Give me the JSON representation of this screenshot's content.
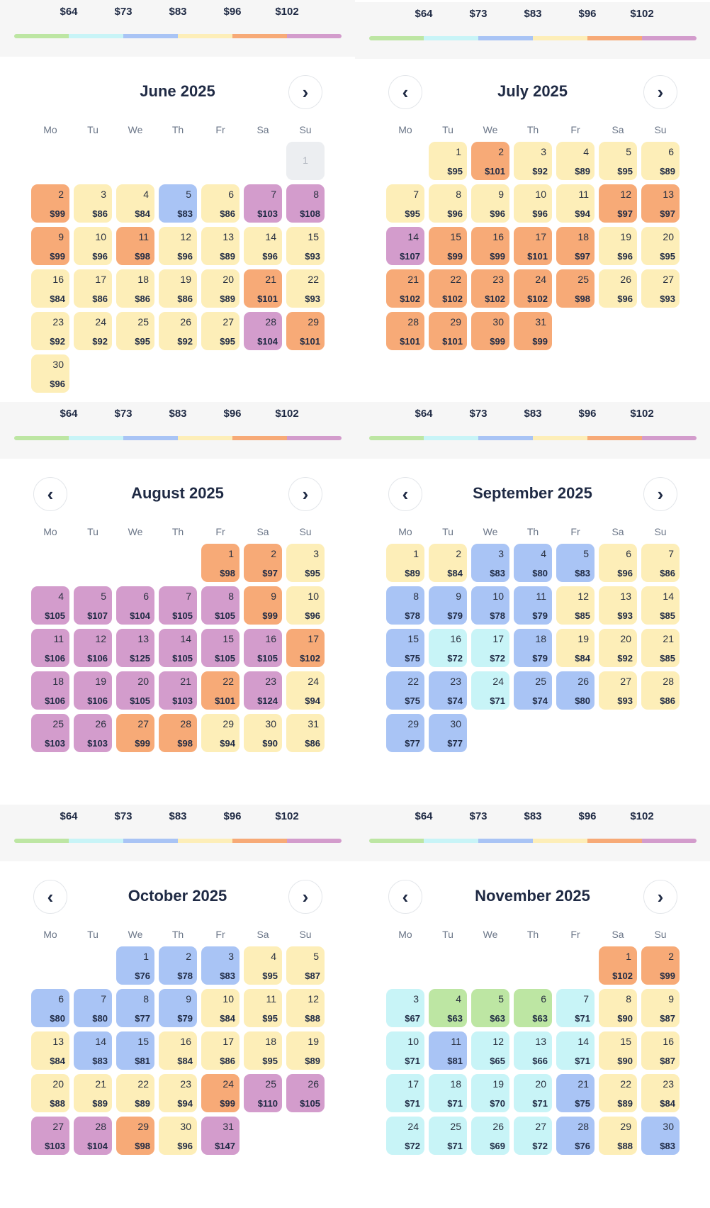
{
  "legend": {
    "prices": [
      "$64",
      "$73",
      "$83",
      "$96",
      "$102"
    ],
    "colors": [
      "#bde6a3",
      "#c8f4f7",
      "#a9c4f5",
      "#fdeeb8",
      "#f7aa77",
      "#d39ccc"
    ]
  },
  "icons": {
    "prev": "chevron-left-icon",
    "next": "chevron-right-icon"
  },
  "nav_glyphs": {
    "prev": "‹",
    "next": "›"
  },
  "weekdays": [
    "Mo",
    "Tu",
    "We",
    "Th",
    "Fr",
    "Sa",
    "Su"
  ],
  "tier_colors": {
    "green": "#bde6a3",
    "cyan": "#c8f4f7",
    "blue": "#a9c4f5",
    "yellow": "#fdeeb8",
    "orange": "#f7aa77",
    "purple": "#d39ccc",
    "disabled": "#eceef1"
  },
  "months": [
    {
      "title": "June 2025",
      "start_col": 6,
      "has_prev": false,
      "has_next": true,
      "days": [
        {
          "d": "1",
          "p": "",
          "t": "disabled"
        },
        {
          "d": "2",
          "p": "$99",
          "t": "orange"
        },
        {
          "d": "3",
          "p": "$86",
          "t": "yellow"
        },
        {
          "d": "4",
          "p": "$84",
          "t": "yellow"
        },
        {
          "d": "5",
          "p": "$83",
          "t": "blue"
        },
        {
          "d": "6",
          "p": "$86",
          "t": "yellow"
        },
        {
          "d": "7",
          "p": "$103",
          "t": "purple"
        },
        {
          "d": "8",
          "p": "$108",
          "t": "purple"
        },
        {
          "d": "9",
          "p": "$99",
          "t": "orange"
        },
        {
          "d": "10",
          "p": "$96",
          "t": "yellow"
        },
        {
          "d": "11",
          "p": "$98",
          "t": "orange"
        },
        {
          "d": "12",
          "p": "$96",
          "t": "yellow"
        },
        {
          "d": "13",
          "p": "$89",
          "t": "yellow"
        },
        {
          "d": "14",
          "p": "$96",
          "t": "yellow"
        },
        {
          "d": "15",
          "p": "$93",
          "t": "yellow"
        },
        {
          "d": "16",
          "p": "$84",
          "t": "yellow"
        },
        {
          "d": "17",
          "p": "$86",
          "t": "yellow"
        },
        {
          "d": "18",
          "p": "$86",
          "t": "yellow"
        },
        {
          "d": "19",
          "p": "$86",
          "t": "yellow"
        },
        {
          "d": "20",
          "p": "$89",
          "t": "yellow"
        },
        {
          "d": "21",
          "p": "$101",
          "t": "orange"
        },
        {
          "d": "22",
          "p": "$93",
          "t": "yellow"
        },
        {
          "d": "23",
          "p": "$92",
          "t": "yellow"
        },
        {
          "d": "24",
          "p": "$92",
          "t": "yellow"
        },
        {
          "d": "25",
          "p": "$95",
          "t": "yellow"
        },
        {
          "d": "26",
          "p": "$92",
          "t": "yellow"
        },
        {
          "d": "27",
          "p": "$95",
          "t": "yellow"
        },
        {
          "d": "28",
          "p": "$104",
          "t": "purple"
        },
        {
          "d": "29",
          "p": "$101",
          "t": "orange"
        },
        {
          "d": "30",
          "p": "$96",
          "t": "yellow"
        }
      ]
    },
    {
      "title": "July 2025",
      "start_col": 1,
      "has_prev": true,
      "has_next": true,
      "days": [
        {
          "d": "1",
          "p": "$95",
          "t": "yellow"
        },
        {
          "d": "2",
          "p": "$101",
          "t": "orange"
        },
        {
          "d": "3",
          "p": "$92",
          "t": "yellow"
        },
        {
          "d": "4",
          "p": "$89",
          "t": "yellow"
        },
        {
          "d": "5",
          "p": "$95",
          "t": "yellow"
        },
        {
          "d": "6",
          "p": "$89",
          "t": "yellow"
        },
        {
          "d": "7",
          "p": "$95",
          "t": "yellow"
        },
        {
          "d": "8",
          "p": "$96",
          "t": "yellow"
        },
        {
          "d": "9",
          "p": "$96",
          "t": "yellow"
        },
        {
          "d": "10",
          "p": "$96",
          "t": "yellow"
        },
        {
          "d": "11",
          "p": "$94",
          "t": "yellow"
        },
        {
          "d": "12",
          "p": "$97",
          "t": "orange"
        },
        {
          "d": "13",
          "p": "$97",
          "t": "orange"
        },
        {
          "d": "14",
          "p": "$107",
          "t": "purple"
        },
        {
          "d": "15",
          "p": "$99",
          "t": "orange"
        },
        {
          "d": "16",
          "p": "$99",
          "t": "orange"
        },
        {
          "d": "17",
          "p": "$101",
          "t": "orange"
        },
        {
          "d": "18",
          "p": "$97",
          "t": "orange"
        },
        {
          "d": "19",
          "p": "$96",
          "t": "yellow"
        },
        {
          "d": "20",
          "p": "$95",
          "t": "yellow"
        },
        {
          "d": "21",
          "p": "$102",
          "t": "orange"
        },
        {
          "d": "22",
          "p": "$102",
          "t": "orange"
        },
        {
          "d": "23",
          "p": "$102",
          "t": "orange"
        },
        {
          "d": "24",
          "p": "$102",
          "t": "orange"
        },
        {
          "d": "25",
          "p": "$98",
          "t": "orange"
        },
        {
          "d": "26",
          "p": "$96",
          "t": "yellow"
        },
        {
          "d": "27",
          "p": "$93",
          "t": "yellow"
        },
        {
          "d": "28",
          "p": "$101",
          "t": "orange"
        },
        {
          "d": "29",
          "p": "$101",
          "t": "orange"
        },
        {
          "d": "30",
          "p": "$99",
          "t": "orange"
        },
        {
          "d": "31",
          "p": "$99",
          "t": "orange"
        }
      ]
    },
    {
      "title": "August 2025",
      "start_col": 4,
      "has_prev": true,
      "has_next": true,
      "days": [
        {
          "d": "1",
          "p": "$98",
          "t": "orange"
        },
        {
          "d": "2",
          "p": "$97",
          "t": "orange"
        },
        {
          "d": "3",
          "p": "$95",
          "t": "yellow"
        },
        {
          "d": "4",
          "p": "$105",
          "t": "purple"
        },
        {
          "d": "5",
          "p": "$107",
          "t": "purple"
        },
        {
          "d": "6",
          "p": "$104",
          "t": "purple"
        },
        {
          "d": "7",
          "p": "$105",
          "t": "purple"
        },
        {
          "d": "8",
          "p": "$105",
          "t": "purple"
        },
        {
          "d": "9",
          "p": "$99",
          "t": "orange"
        },
        {
          "d": "10",
          "p": "$96",
          "t": "yellow"
        },
        {
          "d": "11",
          "p": "$106",
          "t": "purple"
        },
        {
          "d": "12",
          "p": "$106",
          "t": "purple"
        },
        {
          "d": "13",
          "p": "$125",
          "t": "purple"
        },
        {
          "d": "14",
          "p": "$105",
          "t": "purple"
        },
        {
          "d": "15",
          "p": "$105",
          "t": "purple"
        },
        {
          "d": "16",
          "p": "$105",
          "t": "purple"
        },
        {
          "d": "17",
          "p": "$102",
          "t": "orange"
        },
        {
          "d": "18",
          "p": "$106",
          "t": "purple"
        },
        {
          "d": "19",
          "p": "$106",
          "t": "purple"
        },
        {
          "d": "20",
          "p": "$105",
          "t": "purple"
        },
        {
          "d": "21",
          "p": "$103",
          "t": "purple"
        },
        {
          "d": "22",
          "p": "$101",
          "t": "orange"
        },
        {
          "d": "23",
          "p": "$124",
          "t": "purple"
        },
        {
          "d": "24",
          "p": "$94",
          "t": "yellow"
        },
        {
          "d": "25",
          "p": "$103",
          "t": "purple"
        },
        {
          "d": "26",
          "p": "$103",
          "t": "purple"
        },
        {
          "d": "27",
          "p": "$99",
          "t": "orange"
        },
        {
          "d": "28",
          "p": "$98",
          "t": "orange"
        },
        {
          "d": "29",
          "p": "$94",
          "t": "yellow"
        },
        {
          "d": "30",
          "p": "$90",
          "t": "yellow"
        },
        {
          "d": "31",
          "p": "$86",
          "t": "yellow"
        }
      ]
    },
    {
      "title": "September 2025",
      "start_col": 0,
      "has_prev": true,
      "has_next": true,
      "days": [
        {
          "d": "1",
          "p": "$89",
          "t": "yellow"
        },
        {
          "d": "2",
          "p": "$84",
          "t": "yellow"
        },
        {
          "d": "3",
          "p": "$83",
          "t": "blue"
        },
        {
          "d": "4",
          "p": "$80",
          "t": "blue"
        },
        {
          "d": "5",
          "p": "$83",
          "t": "blue"
        },
        {
          "d": "6",
          "p": "$96",
          "t": "yellow"
        },
        {
          "d": "7",
          "p": "$86",
          "t": "yellow"
        },
        {
          "d": "8",
          "p": "$78",
          "t": "blue"
        },
        {
          "d": "9",
          "p": "$79",
          "t": "blue"
        },
        {
          "d": "10",
          "p": "$78",
          "t": "blue"
        },
        {
          "d": "11",
          "p": "$79",
          "t": "blue"
        },
        {
          "d": "12",
          "p": "$85",
          "t": "yellow"
        },
        {
          "d": "13",
          "p": "$93",
          "t": "yellow"
        },
        {
          "d": "14",
          "p": "$85",
          "t": "yellow"
        },
        {
          "d": "15",
          "p": "$75",
          "t": "blue"
        },
        {
          "d": "16",
          "p": "$72",
          "t": "cyan"
        },
        {
          "d": "17",
          "p": "$72",
          "t": "cyan"
        },
        {
          "d": "18",
          "p": "$79",
          "t": "blue"
        },
        {
          "d": "19",
          "p": "$84",
          "t": "yellow"
        },
        {
          "d": "20",
          "p": "$92",
          "t": "yellow"
        },
        {
          "d": "21",
          "p": "$85",
          "t": "yellow"
        },
        {
          "d": "22",
          "p": "$75",
          "t": "blue"
        },
        {
          "d": "23",
          "p": "$74",
          "t": "blue"
        },
        {
          "d": "24",
          "p": "$71",
          "t": "cyan"
        },
        {
          "d": "25",
          "p": "$74",
          "t": "blue"
        },
        {
          "d": "26",
          "p": "$80",
          "t": "blue"
        },
        {
          "d": "27",
          "p": "$93",
          "t": "yellow"
        },
        {
          "d": "28",
          "p": "$86",
          "t": "yellow"
        },
        {
          "d": "29",
          "p": "$77",
          "t": "blue"
        },
        {
          "d": "30",
          "p": "$77",
          "t": "blue"
        }
      ]
    },
    {
      "title": "October 2025",
      "start_col": 2,
      "has_prev": true,
      "has_next": true,
      "days": [
        {
          "d": "1",
          "p": "$76",
          "t": "blue"
        },
        {
          "d": "2",
          "p": "$78",
          "t": "blue"
        },
        {
          "d": "3",
          "p": "$83",
          "t": "blue"
        },
        {
          "d": "4",
          "p": "$95",
          "t": "yellow"
        },
        {
          "d": "5",
          "p": "$87",
          "t": "yellow"
        },
        {
          "d": "6",
          "p": "$80",
          "t": "blue"
        },
        {
          "d": "7",
          "p": "$80",
          "t": "blue"
        },
        {
          "d": "8",
          "p": "$77",
          "t": "blue"
        },
        {
          "d": "9",
          "p": "$79",
          "t": "blue"
        },
        {
          "d": "10",
          "p": "$84",
          "t": "yellow"
        },
        {
          "d": "11",
          "p": "$95",
          "t": "yellow"
        },
        {
          "d": "12",
          "p": "$88",
          "t": "yellow"
        },
        {
          "d": "13",
          "p": "$84",
          "t": "yellow"
        },
        {
          "d": "14",
          "p": "$83",
          "t": "blue"
        },
        {
          "d": "15",
          "p": "$81",
          "t": "blue"
        },
        {
          "d": "16",
          "p": "$84",
          "t": "yellow"
        },
        {
          "d": "17",
          "p": "$86",
          "t": "yellow"
        },
        {
          "d": "18",
          "p": "$95",
          "t": "yellow"
        },
        {
          "d": "19",
          "p": "$89",
          "t": "yellow"
        },
        {
          "d": "20",
          "p": "$88",
          "t": "yellow"
        },
        {
          "d": "21",
          "p": "$89",
          "t": "yellow"
        },
        {
          "d": "22",
          "p": "$89",
          "t": "yellow"
        },
        {
          "d": "23",
          "p": "$94",
          "t": "yellow"
        },
        {
          "d": "24",
          "p": "$99",
          "t": "orange"
        },
        {
          "d": "25",
          "p": "$110",
          "t": "purple"
        },
        {
          "d": "26",
          "p": "$105",
          "t": "purple"
        },
        {
          "d": "27",
          "p": "$103",
          "t": "purple"
        },
        {
          "d": "28",
          "p": "$104",
          "t": "purple"
        },
        {
          "d": "29",
          "p": "$98",
          "t": "orange"
        },
        {
          "d": "30",
          "p": "$96",
          "t": "yellow"
        },
        {
          "d": "31",
          "p": "$147",
          "t": "purple"
        }
      ]
    },
    {
      "title": "November 2025",
      "start_col": 5,
      "has_prev": true,
      "has_next": true,
      "days": [
        {
          "d": "1",
          "p": "$102",
          "t": "orange"
        },
        {
          "d": "2",
          "p": "$99",
          "t": "orange"
        },
        {
          "d": "3",
          "p": "$67",
          "t": "cyan"
        },
        {
          "d": "4",
          "p": "$63",
          "t": "green"
        },
        {
          "d": "5",
          "p": "$63",
          "t": "green"
        },
        {
          "d": "6",
          "p": "$63",
          "t": "green"
        },
        {
          "d": "7",
          "p": "$71",
          "t": "cyan"
        },
        {
          "d": "8",
          "p": "$90",
          "t": "yellow"
        },
        {
          "d": "9",
          "p": "$87",
          "t": "yellow"
        },
        {
          "d": "10",
          "p": "$71",
          "t": "cyan"
        },
        {
          "d": "11",
          "p": "$81",
          "t": "blue"
        },
        {
          "d": "12",
          "p": "$65",
          "t": "cyan"
        },
        {
          "d": "13",
          "p": "$66",
          "t": "cyan"
        },
        {
          "d": "14",
          "p": "$71",
          "t": "cyan"
        },
        {
          "d": "15",
          "p": "$90",
          "t": "yellow"
        },
        {
          "d": "16",
          "p": "$87",
          "t": "yellow"
        },
        {
          "d": "17",
          "p": "$71",
          "t": "cyan"
        },
        {
          "d": "18",
          "p": "$71",
          "t": "cyan"
        },
        {
          "d": "19",
          "p": "$70",
          "t": "cyan"
        },
        {
          "d": "20",
          "p": "$71",
          "t": "cyan"
        },
        {
          "d": "21",
          "p": "$75",
          "t": "blue"
        },
        {
          "d": "22",
          "p": "$89",
          "t": "yellow"
        },
        {
          "d": "23",
          "p": "$84",
          "t": "yellow"
        },
        {
          "d": "24",
          "p": "$72",
          "t": "cyan"
        },
        {
          "d": "25",
          "p": "$71",
          "t": "cyan"
        },
        {
          "d": "26",
          "p": "$69",
          "t": "cyan"
        },
        {
          "d": "27",
          "p": "$72",
          "t": "cyan"
        },
        {
          "d": "28",
          "p": "$76",
          "t": "blue"
        },
        {
          "d": "29",
          "p": "$88",
          "t": "yellow"
        },
        {
          "d": "30",
          "p": "$83",
          "t": "blue"
        }
      ]
    }
  ]
}
